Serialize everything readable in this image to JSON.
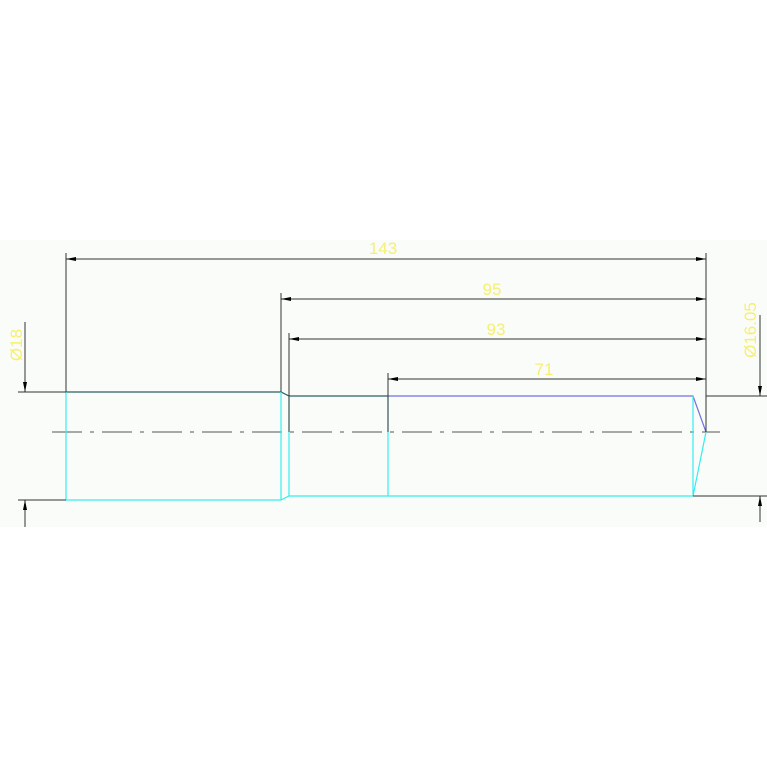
{
  "colors": {
    "background": "#fafcfa",
    "dimension_text": "#f5f070",
    "dimension_line": "#333333",
    "outline_left": "#2a6060",
    "outline_right": "#7070e0",
    "hidden_lower": "#33eeee",
    "centerline": "#555555"
  },
  "dimensions": {
    "overall_length": "143",
    "length_95": "95",
    "length_93": "93",
    "length_71": "71",
    "diameter_left": "Ø18",
    "diameter_right": "Ø16.05"
  }
}
